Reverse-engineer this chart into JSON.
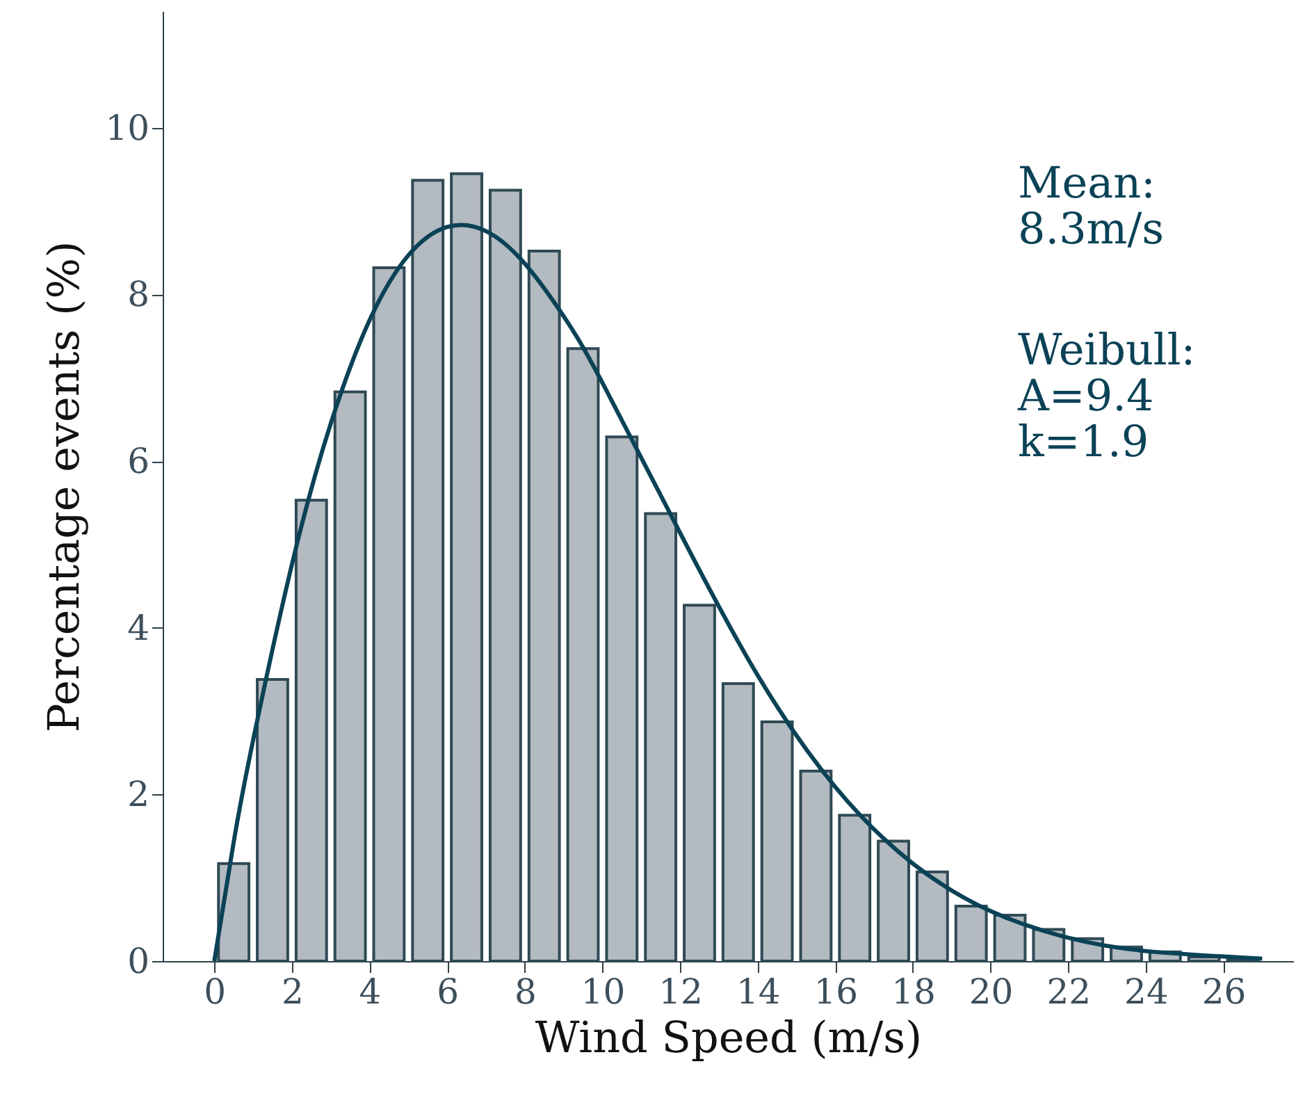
{
  "chart_data": {
    "type": "histogram",
    "xlabel": "Wind Speed (m/s)",
    "ylabel": "Percentage events (%)",
    "annotations": [
      "Mean:\n  8.3m/s",
      "Weibull:\n  A=9.4\n  k=1.9"
    ],
    "bins": [
      0,
      1,
      2,
      3,
      4,
      5,
      6,
      7,
      8,
      9,
      10,
      11,
      12,
      13,
      14,
      15,
      16,
      17,
      18,
      19,
      20,
      21,
      22,
      23,
      24,
      25,
      26,
      27
    ],
    "values": [
      1.17,
      3.38,
      5.53,
      6.83,
      8.32,
      9.37,
      9.45,
      9.25,
      8.52,
      7.35,
      6.29,
      5.37,
      4.27,
      3.33,
      2.87,
      2.28,
      1.75,
      1.44,
      1.07,
      0.66,
      0.55,
      0.38,
      0.27,
      0.17,
      0.11,
      0.05,
      0.03
    ],
    "color": "#b4bac1",
    "series": [
      {
        "type": "line",
        "color": "#0a4256",
        "x": [
          0,
          0.5,
          1,
          2,
          3,
          4,
          5,
          6,
          7,
          8,
          9,
          10,
          12,
          14,
          16,
          18,
          20,
          22,
          24,
          27
        ],
        "values": [
          0,
          1.43,
          2.65,
          4.76,
          6.45,
          7.69,
          8.47,
          8.81,
          8.76,
          8.37,
          7.74,
          6.94,
          5.14,
          3.43,
          2.09,
          1.17,
          0.6,
          0.28,
          0.12,
          0.03
        ]
      }
    ],
    "xlim": [
      -1.33,
      27.8
    ],
    "ylim": [
      0,
      11.4
    ],
    "xticks": [
      0,
      2,
      4,
      6,
      8,
      10,
      12,
      14,
      16,
      18,
      20,
      22,
      24,
      26
    ],
    "yticks": [
      0,
      2,
      4,
      6,
      8,
      10
    ]
  }
}
